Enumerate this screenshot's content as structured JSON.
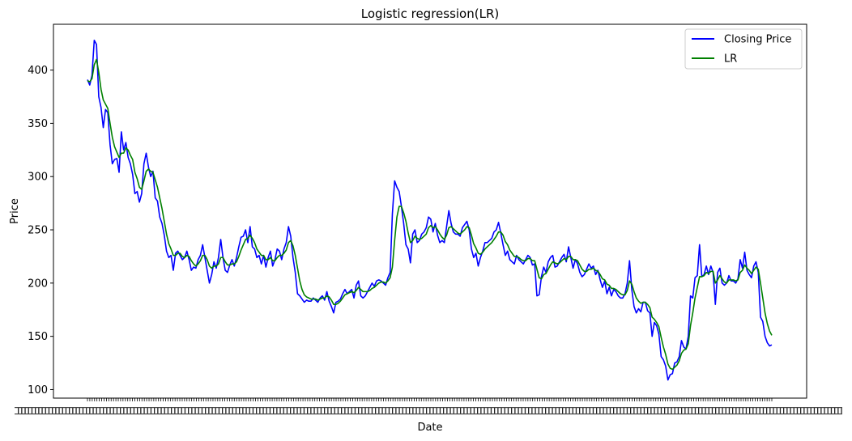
{
  "chart_data": {
    "type": "line",
    "title": "Logistic regression(LR)",
    "xlabel": "Date",
    "ylabel": "Price",
    "ylim": [
      92,
      443
    ],
    "yticks": [
      100,
      150,
      200,
      250,
      300,
      350,
      400
    ],
    "x_tick_count": 290,
    "grid": false,
    "legend": {
      "placement": "top-right"
    },
    "series": [
      {
        "name": "Closing Price",
        "color": "#0000ff",
        "values": [
          391,
          386,
          395,
          428,
          424,
          375,
          365,
          346,
          363,
          360,
          330,
          312,
          316,
          317,
          304,
          342,
          325,
          332,
          318,
          312,
          302,
          284,
          286,
          276,
          284,
          312,
          322,
          309,
          300,
          305,
          280,
          277,
          262,
          256,
          245,
          230,
          224,
          226,
          212,
          228,
          230,
          226,
          222,
          224,
          230,
          222,
          212,
          215,
          214,
          222,
          226,
          236,
          224,
          212,
          200,
          208,
          220,
          214,
          224,
          241,
          224,
          212,
          210,
          217,
          222,
          216,
          224,
          234,
          243,
          244,
          250,
          238,
          253,
          234,
          232,
          224,
          226,
          218,
          226,
          215,
          224,
          230,
          216,
          222,
          232,
          230,
          222,
          232,
          238,
          253,
          244,
          224,
          210,
          190,
          188,
          185,
          182,
          184,
          183,
          183,
          186,
          184,
          182,
          186,
          188,
          184,
          192,
          183,
          178,
          172,
          182,
          183,
          185,
          190,
          194,
          190,
          192,
          194,
          186,
          198,
          202,
          188,
          186,
          188,
          192,
          196,
          200,
          197,
          202,
          203,
          202,
          200,
          198,
          205,
          210,
          265,
          296,
          290,
          286,
          272,
          256,
          236,
          232,
          219,
          246,
          250,
          238,
          240,
          246,
          248,
          252,
          262,
          260,
          248,
          256,
          245,
          238,
          240,
          238,
          253,
          268,
          256,
          248,
          246,
          246,
          244,
          252,
          255,
          258,
          250,
          232,
          224,
          228,
          216,
          224,
          230,
          238,
          238,
          240,
          242,
          248,
          250,
          257,
          247,
          236,
          226,
          230,
          222,
          220,
          218,
          226,
          222,
          220,
          218,
          222,
          226,
          224,
          217,
          218,
          188,
          189,
          206,
          215,
          210,
          220,
          224,
          226,
          215,
          216,
          220,
          224,
          227,
          220,
          234,
          224,
          214,
          222,
          218,
          210,
          206,
          208,
          213,
          218,
          214,
          216,
          208,
          212,
          203,
          196,
          202,
          190,
          196,
          188,
          194,
          192,
          188,
          186,
          186,
          190,
          200,
          221,
          194,
          178,
          172,
          176,
          173,
          182,
          182,
          174,
          172,
          150,
          163,
          160,
          152,
          131,
          128,
          122,
          109,
          114,
          115,
          125,
          126,
          131,
          146,
          140,
          138,
          150,
          188,
          186,
          205,
          207,
          236,
          206,
          208,
          216,
          208,
          216,
          210,
          180,
          210,
          214,
          200,
          198,
          200,
          207,
          202,
          202,
          200,
          204,
          222,
          214,
          229,
          212,
          208,
          205,
          216,
          220,
          210,
          168,
          164,
          150,
          144,
          141,
          142
        ]
      },
      {
        "name": "LR",
        "color": "#008000",
        "values": [
          390,
          389,
          392,
          405,
          410,
          398,
          382,
          372,
          368,
          364,
          350,
          337,
          328,
          323,
          318,
          322,
          322,
          327,
          325,
          320,
          316,
          304,
          298,
          290,
          288,
          296,
          305,
          307,
          305,
          304,
          297,
          290,
          280,
          270,
          258,
          246,
          237,
          232,
          226,
          226,
          228,
          228,
          225,
          224,
          226,
          225,
          221,
          218,
          216,
          218,
          221,
          226,
          226,
          222,
          216,
          214,
          216,
          216,
          218,
          224,
          224,
          220,
          217,
          217,
          218,
          218,
          220,
          225,
          231,
          236,
          241,
          242,
          245,
          242,
          238,
          232,
          229,
          226,
          226,
          222,
          222,
          224,
          221,
          221,
          224,
          226,
          226,
          228,
          231,
          238,
          240,
          235,
          226,
          214,
          202,
          194,
          189,
          187,
          186,
          185,
          185,
          185,
          184,
          185,
          186,
          186,
          188,
          187,
          184,
          180,
          180,
          181,
          183,
          186,
          189,
          190,
          191,
          192,
          191,
          193,
          196,
          194,
          192,
          192,
          192,
          193,
          195,
          196,
          198,
          200,
          201,
          201,
          200,
          202,
          205,
          215,
          240,
          262,
          272,
          272,
          266,
          258,
          247,
          238,
          240,
          244,
          242,
          241,
          242,
          244,
          246,
          252,
          254,
          252,
          253,
          250,
          246,
          243,
          241,
          245,
          252,
          253,
          251,
          249,
          247,
          246,
          248,
          250,
          253,
          252,
          245,
          237,
          233,
          228,
          227,
          229,
          232,
          234,
          236,
          238,
          241,
          244,
          248,
          248,
          245,
          239,
          236,
          231,
          228,
          225,
          225,
          224,
          222,
          221,
          221,
          223,
          223,
          221,
          221,
          213,
          205,
          204,
          208,
          209,
          213,
          217,
          220,
          219,
          218,
          219,
          221,
          223,
          222,
          225,
          225,
          222,
          222,
          221,
          217,
          213,
          211,
          211,
          213,
          213,
          214,
          212,
          211,
          208,
          204,
          203,
          199,
          198,
          195,
          195,
          194,
          192,
          190,
          189,
          189,
          193,
          202,
          199,
          192,
          186,
          183,
          181,
          182,
          182,
          180,
          177,
          168,
          166,
          163,
          159,
          149,
          140,
          133,
          124,
          120,
          119,
          121,
          123,
          127,
          134,
          137,
          138,
          143,
          160,
          172,
          186,
          196,
          206,
          206,
          207,
          210,
          209,
          211,
          211,
          200,
          203,
          207,
          204,
          201,
          200,
          203,
          203,
          203,
          202,
          203,
          210,
          212,
          217,
          214,
          212,
          209,
          212,
          215,
          213,
          200,
          186,
          172,
          162,
          155,
          151
        ]
      }
    ]
  }
}
